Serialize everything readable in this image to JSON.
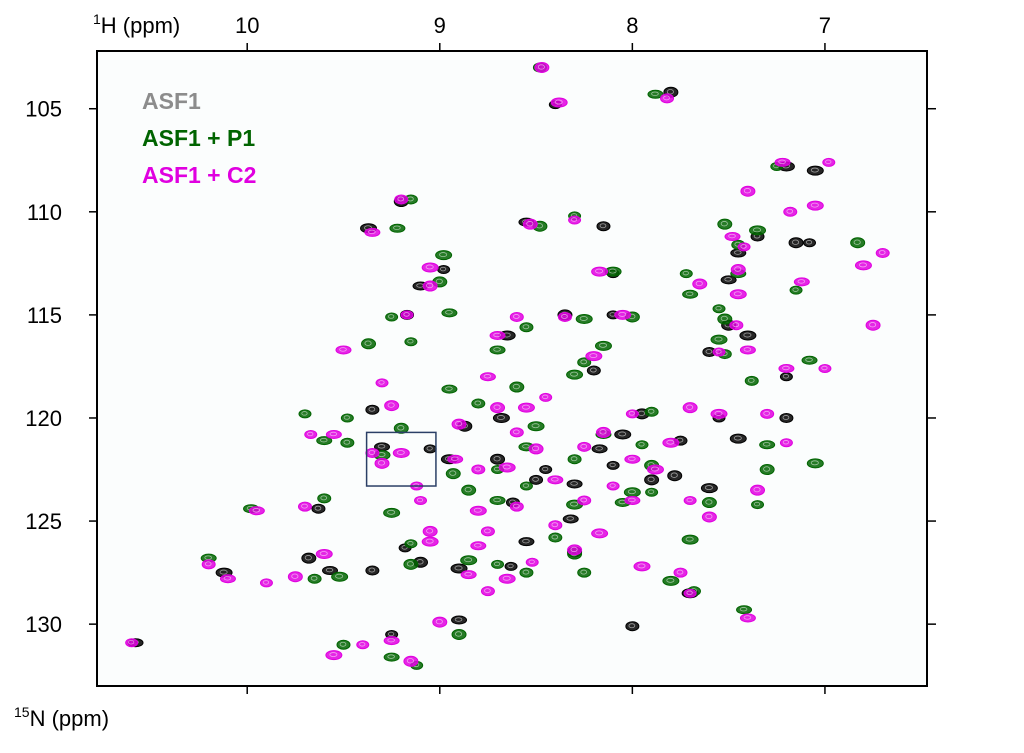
{
  "chart_data": {
    "type": "scatter",
    "title": "",
    "x_axis": {
      "label_sup": "1",
      "label_main": "H (ppm)",
      "range": [
        10.78,
        6.47
      ],
      "ticks": [
        10,
        9,
        8,
        7
      ],
      "tick_labels": [
        "10",
        "9",
        "8",
        "7"
      ],
      "position": "top",
      "reversed": true
    },
    "y_axis": {
      "label_sup": "15",
      "label_main": "N (ppm)",
      "range": [
        102.2,
        133.0
      ],
      "ticks": [
        105,
        110,
        115,
        120,
        125,
        130
      ],
      "tick_labels": [
        "105",
        "110",
        "115",
        "120",
        "125",
        "130"
      ],
      "reversed": true
    },
    "grid": false,
    "legend": {
      "placement": "top-left",
      "entries": [
        {
          "label": "ASF1",
          "color": "#8c8c8c"
        },
        {
          "label": "ASF1 + P1",
          "color": "#006400"
        },
        {
          "label": "ASF1 + C2",
          "color": "#e000e0"
        }
      ]
    },
    "annotations": [
      {
        "type": "box",
        "x_range": [
          9.38,
          9.02
        ],
        "y_range": [
          120.7,
          123.3
        ],
        "color": "#2b3f66"
      }
    ],
    "series": [
      {
        "name": "ASF1",
        "color": "#000000",
        "points": [
          [
            8.4,
            104.8
          ],
          [
            7.8,
            104.2
          ],
          [
            7.2,
            107.8
          ],
          [
            7.35,
            111.2
          ],
          [
            7.45,
            112.0
          ],
          [
            7.08,
            111.5
          ],
          [
            7.5,
            115.5
          ],
          [
            7.4,
            116.0
          ],
          [
            7.6,
            116.8
          ],
          [
            7.5,
            113.3
          ],
          [
            8.1,
            115.0
          ],
          [
            8.35,
            115.0
          ],
          [
            8.65,
            116.0
          ],
          [
            9.17,
            115.0
          ],
          [
            9.1,
            113.6
          ],
          [
            8.98,
            112.8
          ],
          [
            9.2,
            109.5
          ],
          [
            9.37,
            110.8
          ],
          [
            8.15,
            110.7
          ],
          [
            8.55,
            110.5
          ],
          [
            8.1,
            113.0
          ],
          [
            7.95,
            119.8
          ],
          [
            8.05,
            120.8
          ],
          [
            7.75,
            121.1
          ],
          [
            8.17,
            121.5
          ],
          [
            7.55,
            120.0
          ],
          [
            8.7,
            122.0
          ],
          [
            8.95,
            122.0
          ],
          [
            8.5,
            123.0
          ],
          [
            8.3,
            123.2
          ],
          [
            8.1,
            122.3
          ],
          [
            7.9,
            123.0
          ],
          [
            7.6,
            123.4
          ],
          [
            8.62,
            124.1
          ],
          [
            8.32,
            124.9
          ],
          [
            9.18,
            126.3
          ],
          [
            9.1,
            127.0
          ],
          [
            8.9,
            127.3
          ],
          [
            9.35,
            127.4
          ],
          [
            9.57,
            127.4
          ],
          [
            8.63,
            127.2
          ],
          [
            8.3,
            126.5
          ],
          [
            7.7,
            128.5
          ],
          [
            8.0,
            130.1
          ],
          [
            8.9,
            129.8
          ],
          [
            9.25,
            130.5
          ],
          [
            9.68,
            126.8
          ],
          [
            10.12,
            127.5
          ],
          [
            9.63,
            124.4
          ],
          [
            9.3,
            121.4
          ],
          [
            9.05,
            121.5
          ],
          [
            8.87,
            120.4
          ],
          [
            8.68,
            120.0
          ],
          [
            9.35,
            119.6
          ],
          [
            8.55,
            126.0
          ],
          [
            7.2,
            118.0
          ],
          [
            7.15,
            111.5
          ],
          [
            7.05,
            108.0
          ],
          [
            8.2,
            117.7
          ],
          [
            10.58,
            130.9
          ],
          [
            8.45,
            122.5
          ],
          [
            7.78,
            122.8
          ],
          [
            7.45,
            121.0
          ],
          [
            7.2,
            120.0
          ]
        ]
      },
      {
        "name": "ASF1 + P1",
        "color": "#006400",
        "points": [
          [
            8.48,
            103.0
          ],
          [
            7.88,
            104.3
          ],
          [
            7.25,
            107.8
          ],
          [
            7.52,
            110.6
          ],
          [
            7.35,
            110.9
          ],
          [
            7.45,
            111.6
          ],
          [
            7.45,
            113.0
          ],
          [
            7.55,
            114.7
          ],
          [
            7.52,
            115.2
          ],
          [
            7.55,
            116.2
          ],
          [
            7.52,
            116.9
          ],
          [
            7.7,
            114.0
          ],
          [
            7.72,
            113.0
          ],
          [
            8.0,
            115.1
          ],
          [
            8.25,
            115.2
          ],
          [
            8.55,
            115.6
          ],
          [
            8.95,
            114.9
          ],
          [
            9.25,
            115.1
          ],
          [
            9.0,
            113.4
          ],
          [
            8.98,
            112.1
          ],
          [
            9.15,
            109.4
          ],
          [
            9.22,
            110.8
          ],
          [
            8.3,
            110.2
          ],
          [
            8.48,
            110.7
          ],
          [
            8.1,
            112.9
          ],
          [
            7.9,
            119.7
          ],
          [
            8.15,
            120.8
          ],
          [
            7.95,
            121.3
          ],
          [
            7.9,
            122.3
          ],
          [
            8.0,
            123.6
          ],
          [
            8.3,
            122.0
          ],
          [
            8.55,
            121.4
          ],
          [
            8.7,
            122.5
          ],
          [
            8.93,
            122.7
          ],
          [
            9.3,
            121.8
          ],
          [
            9.48,
            121.2
          ],
          [
            9.6,
            121.1
          ],
          [
            9.7,
            119.8
          ],
          [
            8.6,
            118.5
          ],
          [
            8.3,
            117.9
          ],
          [
            8.25,
            117.3
          ],
          [
            8.7,
            116.7
          ],
          [
            9.15,
            116.3
          ],
          [
            9.37,
            116.4
          ],
          [
            9.25,
            124.6
          ],
          [
            9.6,
            123.9
          ],
          [
            9.98,
            124.4
          ],
          [
            9.15,
            126.1
          ],
          [
            9.15,
            127.1
          ],
          [
            9.52,
            127.7
          ],
          [
            9.65,
            127.8
          ],
          [
            10.2,
            126.8
          ],
          [
            8.7,
            127.1
          ],
          [
            8.3,
            126.6
          ],
          [
            7.8,
            127.9
          ],
          [
            7.68,
            128.4
          ],
          [
            7.42,
            129.3
          ],
          [
            7.35,
            124.2
          ],
          [
            7.3,
            122.5
          ],
          [
            7.05,
            122.2
          ],
          [
            9.5,
            131.0
          ],
          [
            9.25,
            131.6
          ],
          [
            9.12,
            132.0
          ],
          [
            8.9,
            130.5
          ],
          [
            8.85,
            126.9
          ],
          [
            8.55,
            127.5
          ],
          [
            8.05,
            124.1
          ],
          [
            7.9,
            123.6
          ],
          [
            7.6,
            124.1
          ],
          [
            7.7,
            125.9
          ],
          [
            8.4,
            125.8
          ],
          [
            8.7,
            124.0
          ],
          [
            8.55,
            123.3
          ],
          [
            8.85,
            123.5
          ],
          [
            8.5,
            120.4
          ],
          [
            8.8,
            119.3
          ],
          [
            8.95,
            118.6
          ],
          [
            9.48,
            120.0
          ],
          [
            9.2,
            120.5
          ],
          [
            8.15,
            116.5
          ],
          [
            7.38,
            118.2
          ],
          [
            7.08,
            117.2
          ],
          [
            7.15,
            113.8
          ],
          [
            6.83,
            111.5
          ],
          [
            8.3,
            124.2
          ],
          [
            8.25,
            127.5
          ],
          [
            7.3,
            121.3
          ]
        ]
      },
      {
        "name": "ASF1 + C2",
        "color": "#e000e0",
        "points": [
          [
            8.47,
            103.0
          ],
          [
            8.38,
            104.7
          ],
          [
            7.82,
            104.5
          ],
          [
            7.22,
            107.6
          ],
          [
            6.98,
            107.6
          ],
          [
            7.4,
            109.0
          ],
          [
            7.05,
            109.7
          ],
          [
            7.18,
            110.0
          ],
          [
            7.48,
            111.2
          ],
          [
            7.42,
            111.7
          ],
          [
            7.45,
            112.8
          ],
          [
            7.45,
            114.0
          ],
          [
            7.46,
            115.5
          ],
          [
            7.4,
            116.7
          ],
          [
            7.55,
            116.8
          ],
          [
            7.65,
            113.5
          ],
          [
            8.05,
            115.0
          ],
          [
            8.35,
            115.1
          ],
          [
            8.7,
            116.0
          ],
          [
            9.17,
            115.0
          ],
          [
            9.05,
            113.6
          ],
          [
            9.05,
            112.7
          ],
          [
            9.2,
            109.4
          ],
          [
            9.35,
            111.0
          ],
          [
            8.3,
            110.4
          ],
          [
            8.53,
            110.6
          ],
          [
            8.17,
            112.9
          ],
          [
            8.6,
            115.1
          ],
          [
            9.5,
            116.7
          ],
          [
            8.0,
            119.8
          ],
          [
            8.15,
            120.7
          ],
          [
            7.8,
            121.2
          ],
          [
            8.25,
            121.4
          ],
          [
            8.0,
            122.0
          ],
          [
            8.1,
            123.3
          ],
          [
            8.5,
            121.5
          ],
          [
            8.65,
            122.4
          ],
          [
            8.8,
            122.5
          ],
          [
            8.92,
            122.0
          ],
          [
            9.12,
            123.3
          ],
          [
            9.3,
            122.2
          ],
          [
            9.2,
            121.7
          ],
          [
            9.35,
            121.7
          ],
          [
            9.55,
            120.8
          ],
          [
            9.67,
            120.8
          ],
          [
            8.9,
            120.3
          ],
          [
            8.55,
            119.5
          ],
          [
            8.6,
            120.7
          ],
          [
            8.75,
            118.0
          ],
          [
            9.1,
            124.0
          ],
          [
            9.05,
            125.5
          ],
          [
            9.05,
            126.0
          ],
          [
            8.75,
            125.5
          ],
          [
            8.85,
            127.6
          ],
          [
            8.52,
            127.0
          ],
          [
            8.3,
            126.4
          ],
          [
            8.17,
            125.6
          ],
          [
            8.4,
            125.2
          ],
          [
            8.0,
            124.0
          ],
          [
            7.7,
            124.0
          ],
          [
            7.6,
            124.8
          ],
          [
            7.95,
            127.2
          ],
          [
            7.75,
            127.5
          ],
          [
            7.4,
            129.7
          ],
          [
            7.7,
            128.5
          ],
          [
            9.0,
            129.9
          ],
          [
            8.65,
            127.8
          ],
          [
            8.75,
            128.4
          ],
          [
            9.25,
            130.8
          ],
          [
            9.4,
            131.0
          ],
          [
            9.15,
            131.8
          ],
          [
            9.55,
            131.5
          ],
          [
            10.2,
            127.1
          ],
          [
            10.1,
            127.8
          ],
          [
            9.9,
            128.0
          ],
          [
            9.75,
            127.7
          ],
          [
            9.6,
            126.6
          ],
          [
            9.7,
            124.3
          ],
          [
            9.95,
            124.5
          ],
          [
            10.6,
            130.9
          ],
          [
            7.7,
            119.5
          ],
          [
            7.55,
            119.8
          ],
          [
            7.3,
            119.8
          ],
          [
            7.2,
            117.6
          ],
          [
            7.0,
            117.6
          ],
          [
            6.75,
            115.5
          ],
          [
            6.8,
            112.6
          ],
          [
            6.7,
            112.0
          ],
          [
            7.12,
            113.4
          ],
          [
            7.2,
            121.2
          ],
          [
            7.35,
            123.5
          ],
          [
            7.88,
            122.5
          ],
          [
            8.25,
            124.0
          ],
          [
            8.4,
            123.0
          ],
          [
            8.45,
            119.0
          ],
          [
            8.7,
            119.5
          ],
          [
            8.8,
            124.5
          ],
          [
            8.6,
            124.3
          ],
          [
            8.8,
            126.2
          ],
          [
            9.3,
            118.3
          ],
          [
            9.25,
            119.4
          ],
          [
            8.2,
            117.0
          ]
        ]
      }
    ]
  }
}
